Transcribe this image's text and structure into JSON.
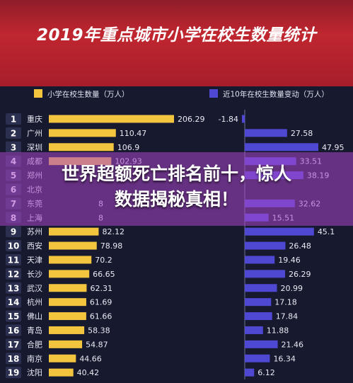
{
  "header": {
    "title": "2019年重点城市小学在校生数量统计"
  },
  "overlay": {
    "line1": "世界超额死亡排名前十，惊人",
    "line2": "数据揭秘真相！"
  },
  "colors": {
    "left_bar": "#f3c53f",
    "right_bar": "#4f48d2",
    "header_bg": "#b8232e",
    "panel_bg": "#17192f",
    "overlay": "#b25ad0"
  },
  "chart_data": {
    "type": "bar",
    "legend": [
      {
        "label": "小学在校生数量（万人）",
        "color": "#f3c53f"
      },
      {
        "label": "近10年在校生数量变动（万人）",
        "color": "#4f48d2"
      }
    ],
    "categories": [
      "重庆",
      "广州",
      "深圳",
      "成都",
      "郑州",
      "北京",
      "东莞",
      "上海",
      "苏州",
      "西安",
      "天津",
      "长沙",
      "武汉",
      "杭州",
      "佛山",
      "青岛",
      "合肥",
      "南京",
      "沈阳"
    ],
    "series": [
      {
        "name": "小学在校生数量（万人）",
        "values": [
          206.29,
          110.47,
          106.9,
          102.93,
          null,
          null,
          null,
          null,
          82.12,
          78.98,
          70.2,
          66.65,
          62.31,
          61.69,
          61.66,
          58.38,
          54.87,
          44.66,
          40.42
        ],
        "labels": [
          "206.29",
          "110.47",
          "106.9",
          "102.93",
          "",
          "",
          "8",
          "8",
          "82.12",
          "78.98",
          "70.2",
          "66.65",
          "62.31",
          "61.69",
          "61.66",
          "58.38",
          "54.87",
          "44.66",
          "40.42"
        ]
      },
      {
        "name": "近10年在校生数量变动（万人）",
        "values": [
          -1.84,
          27.58,
          47.95,
          33.51,
          38.19,
          null,
          32.62,
          15.51,
          45.1,
          26.48,
          19.46,
          26.29,
          20.99,
          17.18,
          17.84,
          11.88,
          21.46,
          16.34,
          6.12
        ],
        "labels": [
          "-1.84",
          "27.58",
          "47.95",
          "33.51",
          "38.19",
          "",
          "32.62",
          "15.51",
          "45.1",
          "26.48",
          "19.46",
          "26.29",
          "20.99",
          "17.18",
          "17.84",
          "11.88",
          "21.46",
          "16.34",
          "6.12"
        ]
      }
    ],
    "ranks": [
      "1",
      "2",
      "3",
      "4",
      "5",
      "6",
      "7",
      "8",
      "9",
      "10",
      "11",
      "12",
      "13",
      "14",
      "15",
      "16",
      "17",
      "18",
      "19"
    ]
  }
}
